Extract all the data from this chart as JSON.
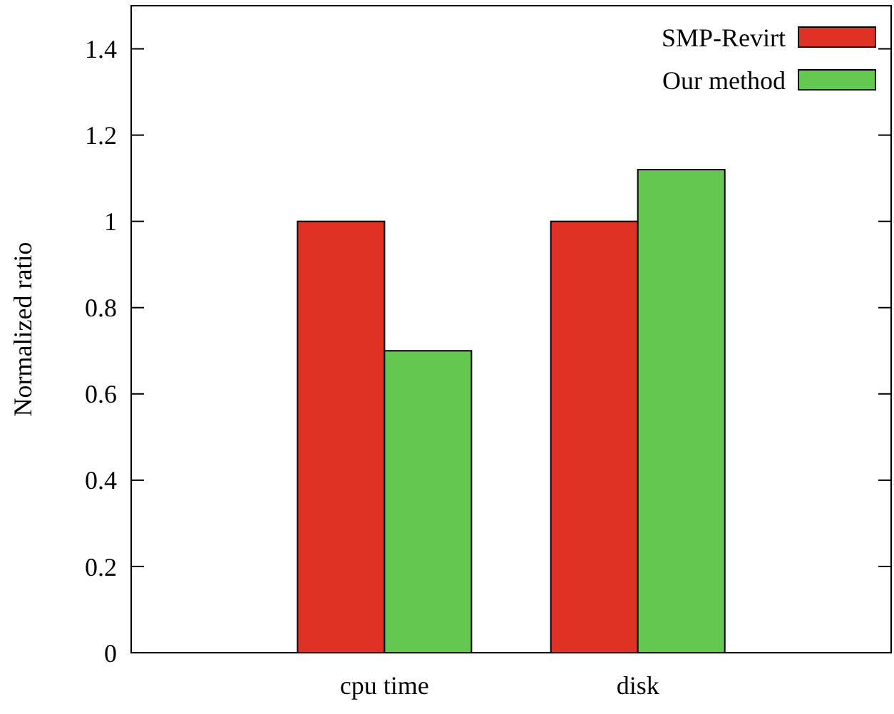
{
  "chart_data": {
    "type": "bar",
    "ylabel": "Normalized ratio",
    "categories": [
      "cpu time",
      "disk"
    ],
    "series": [
      {
        "name": "SMP-Revirt",
        "color": "#e03224",
        "values": [
          1,
          1
        ]
      },
      {
        "name": "Our method",
        "color": "#64c850",
        "values": [
          0.7,
          1.12
        ]
      }
    ],
    "ylim": [
      0,
      1.5
    ],
    "yticks": [
      0,
      0.2,
      0.4,
      0.6,
      0.8,
      1,
      1.2,
      1.4
    ],
    "legend": "top right",
    "grid": false
  }
}
